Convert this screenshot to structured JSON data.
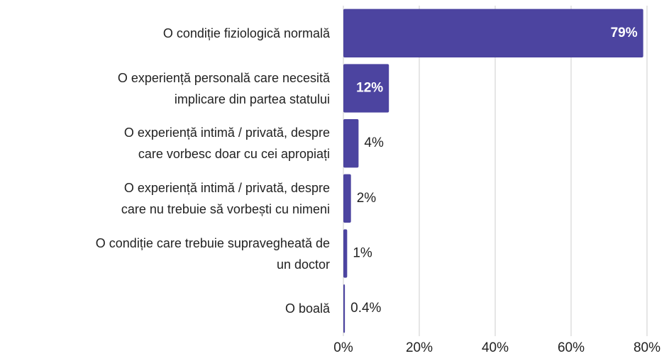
{
  "chart_data": {
    "type": "hbar",
    "categories": [
      "O condiție fiziologică normală",
      "O experiență personală care necesită\nimplicare din partea statului",
      "O experiență intimă / privată, despre\ncare vorbesc doar cu cei apropiați",
      "O experiență intimă / privată, despre\ncare nu trebuie să vorbești cu nimeni",
      "O condiție care trebuie supravegheată de\nun doctor",
      "O boală"
    ],
    "values": [
      79,
      12,
      4,
      2,
      1,
      0.4
    ],
    "value_labels": [
      "79%",
      "12%",
      "4%",
      "2%",
      "1%",
      "0.4%"
    ],
    "color": "#4c44a0",
    "xlim": [
      0,
      80
    ],
    "xticks": [
      {
        "value": 0,
        "label": "0%"
      },
      {
        "value": 20,
        "label": "20%"
      },
      {
        "value": 40,
        "label": "40%"
      },
      {
        "value": 60,
        "label": "60%"
      },
      {
        "value": 80,
        "label": "80%"
      }
    ],
    "grid": true
  }
}
